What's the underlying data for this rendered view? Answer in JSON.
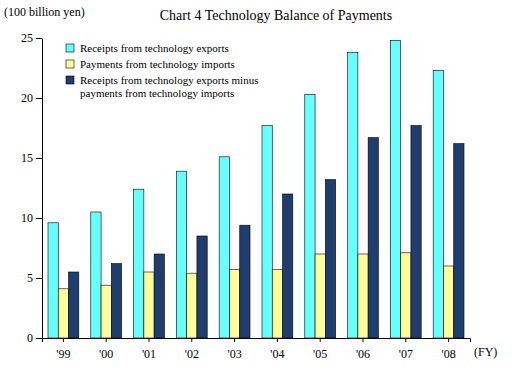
{
  "chart_data": {
    "type": "bar",
    "title": "Chart 4 Technology Balance of Payments",
    "y_label": "(100 billion yen)",
    "x_label": "(FY)",
    "categories": [
      "'99",
      "'00",
      "'01",
      "'02",
      "'03",
      "'04",
      "'05",
      "'06",
      "'07",
      "'08"
    ],
    "series": [
      {
        "name": "Receipts from technology exports",
        "color": "#66ffff",
        "values": [
          9.6,
          10.5,
          12.4,
          13.9,
          15.1,
          17.7,
          20.3,
          23.8,
          24.8,
          22.3
        ]
      },
      {
        "name": "Payments from technology imports",
        "color": "#ffff99",
        "values": [
          4.1,
          4.4,
          5.5,
          5.4,
          5.7,
          5.7,
          7.0,
          7.0,
          7.1,
          6.0
        ]
      },
      {
        "name": "Receipts from technology exports minus payments from technology imports",
        "color": "#1f3d6e",
        "values": [
          5.5,
          6.2,
          7.0,
          8.5,
          9.4,
          12.0,
          13.2,
          16.7,
          17.7,
          16.2
        ]
      }
    ],
    "ylim": [
      0,
      25
    ],
    "yticks": [
      0,
      5,
      10,
      15,
      20,
      25
    ],
    "grid": false,
    "legend": "upper-left"
  }
}
